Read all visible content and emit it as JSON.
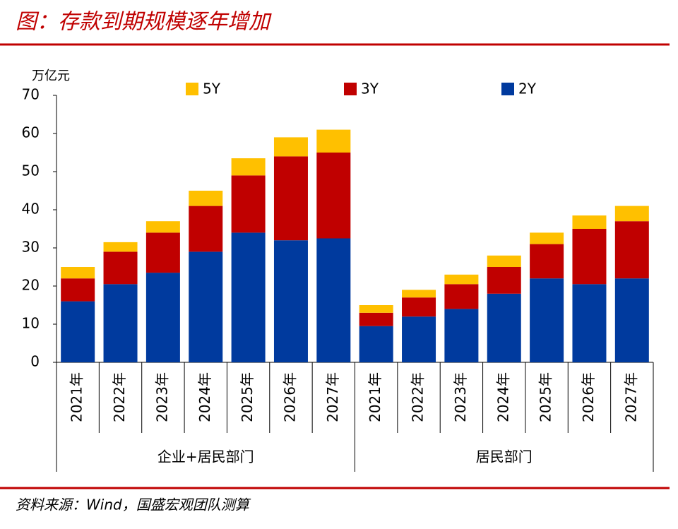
{
  "chart_data": {
    "type": "stacked-bar",
    "title": "图：存款到期规模逐年增加",
    "y_label": "万亿元",
    "source": "资料来源：Wind，国盛宏观团队测算",
    "categories": [
      "2021年",
      "2022年",
      "2023年",
      "2024年",
      "2025年",
      "2026年",
      "2027年",
      "2021年",
      "2022年",
      "2023年",
      "2024年",
      "2025年",
      "2026年",
      "2027年"
    ],
    "groups": [
      "企业+居民部门",
      "居民部门"
    ],
    "series": [
      {
        "name": "2Y",
        "color": "#003a9e",
        "values": [
          16,
          20.5,
          23.5,
          29,
          34,
          32,
          32.5,
          9.5,
          12,
          14,
          18,
          22,
          20.5,
          22
        ]
      },
      {
        "name": "3Y",
        "color": "#c00000",
        "values": [
          6,
          8.5,
          10.5,
          12,
          15,
          22,
          22.5,
          3.5,
          5,
          6.5,
          7,
          9,
          14.5,
          15
        ]
      },
      {
        "name": "5Y",
        "color": "#ffc000",
        "values": [
          3,
          2.5,
          3,
          4,
          4.5,
          5,
          6,
          2,
          2,
          2.5,
          3,
          3,
          3.5,
          4
        ]
      }
    ],
    "ylim": [
      0,
      70
    ],
    "yticks": [
      0,
      10,
      20,
      30,
      40,
      50,
      60,
      70
    ]
  }
}
